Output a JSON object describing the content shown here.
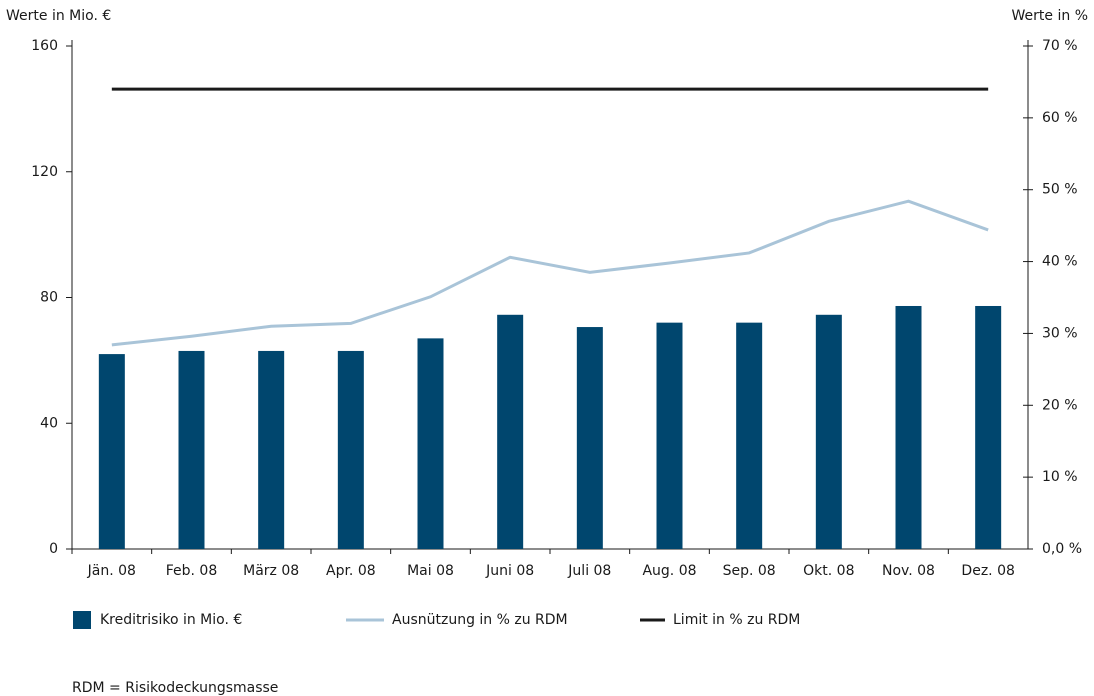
{
  "chart_data": {
    "type": "bar",
    "y_label": "Werte in Mio. €",
    "y2_label": "Werte in %",
    "categories": [
      "Jän. 08",
      "Feb. 08",
      "März 08",
      "Apr. 08",
      "Mai 08",
      "Juni 08",
      "Juli 08",
      "Aug. 08",
      "Sep. 08",
      "Okt. 08",
      "Nov. 08",
      "Dez. 08"
    ],
    "series": [
      {
        "name": "Kreditrisiko in Mio. €",
        "type": "bar",
        "color": "#00466e",
        "values": [
          62,
          63,
          63,
          63,
          67,
          74.5,
          70.6,
          72,
          72,
          74.5,
          77.3,
          77.3
        ]
      },
      {
        "name": "Ausnützung in % zu RDM",
        "type": "line",
        "axis": "y2",
        "color": "#a9c4d8",
        "values": [
          28.4,
          29.6,
          31.0,
          31.4,
          35.1,
          40.6,
          38.5,
          39.8,
          41.2,
          45.6,
          48.4,
          44.4
        ]
      },
      {
        "name": "Limit in % zu RDM",
        "type": "line",
        "axis": "y2",
        "color": "#1a1a1a",
        "values": [
          64,
          64,
          64,
          64,
          64,
          64,
          64,
          64,
          64,
          64,
          64,
          64
        ]
      }
    ],
    "ylim": [
      0,
      160
    ],
    "yticks": [
      0,
      40,
      80,
      120,
      160
    ],
    "y2lim": [
      0,
      70
    ],
    "y2ticks": [
      {
        "value": 0,
        "label": "0,0 %"
      },
      {
        "value": 10,
        "label": "10 %"
      },
      {
        "value": 20,
        "label": "20 %"
      },
      {
        "value": 30,
        "label": "30 %"
      },
      {
        "value": 40,
        "label": "40 %"
      },
      {
        "value": 50,
        "label": "50 %"
      },
      {
        "value": 60,
        "label": "60 %"
      },
      {
        "value": 70,
        "label": "70 %"
      }
    ],
    "footnote": "RDM = Risikodeckungsmasse"
  }
}
